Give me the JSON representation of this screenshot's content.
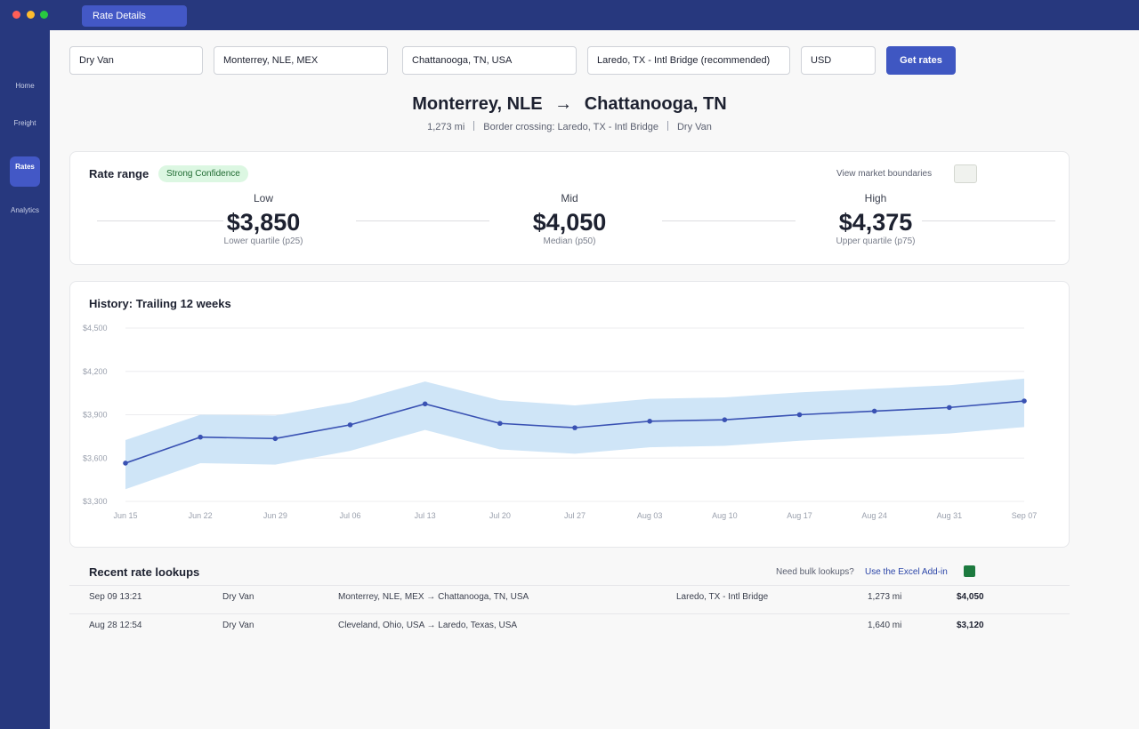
{
  "window": {
    "tab_label": "Rate Details"
  },
  "sidebar": {
    "items": [
      {
        "label": "Home"
      },
      {
        "label": "Freight"
      },
      {
        "label": "Rates"
      },
      {
        "label": "Analytics"
      }
    ]
  },
  "search": {
    "equipment": "Dry Van",
    "origin": "Monterrey, NLE, MEX",
    "destination": "Chattanooga, TN, USA",
    "border": "Laredo, TX - Intl Bridge (recommended)",
    "currency": "USD",
    "submit_label": "Get rates"
  },
  "route": {
    "origin": "Monterrey, NLE",
    "arrow": "→",
    "destination": "Chattanooga, TN",
    "distance": "1,273 mi",
    "border": "Border crossing: Laredo, TX - Intl Bridge",
    "equipment": "Dry Van"
  },
  "rate_range": {
    "title": "Rate range",
    "confidence": "Strong Confidence",
    "boundaries_label": "View market boundaries",
    "low": {
      "label": "Low",
      "value": "$3,850",
      "sub": "Lower quartile (p25)"
    },
    "mid": {
      "label": "Mid",
      "value": "$4,050",
      "sub": "Median (p50)"
    },
    "high": {
      "label": "High",
      "value": "$4,375",
      "sub": "Upper quartile (p75)"
    }
  },
  "history": {
    "title": "History: Trailing 12 weeks"
  },
  "chart_data": {
    "type": "line",
    "title": "History: Trailing 12 weeks",
    "x": [
      "Jun 15",
      "Jun 22",
      "Jun 29",
      "Jul 06",
      "Jul 13",
      "Jul 20",
      "Jul 27",
      "Aug 03",
      "Aug 10",
      "Aug 17",
      "Aug 24",
      "Aug 31",
      "Sep 07"
    ],
    "ylim": [
      3300,
      4500
    ],
    "yticks": [
      3300,
      3600,
      3900,
      4200,
      4500
    ],
    "ytick_labels": [
      "$3,300",
      "$3,600",
      "$3,900",
      "$4,200",
      "$4,500"
    ],
    "grid": true,
    "series": [
      {
        "values": [
          3565,
          3745,
          3735,
          3830,
          3975,
          3840,
          3810,
          3855,
          3865,
          3900,
          3925,
          3950,
          3995
        ]
      }
    ],
    "band": {
      "lower": [
        3385,
        3565,
        3555,
        3650,
        3795,
        3660,
        3630,
        3675,
        3685,
        3720,
        3745,
        3770,
        3815
      ],
      "upper": [
        3725,
        3900,
        3895,
        3985,
        4130,
        4000,
        3965,
        4010,
        4020,
        4055,
        4080,
        4105,
        4150
      ]
    },
    "colors": {
      "line": "#3a52b3",
      "band": "#cfe5f7"
    }
  },
  "recent": {
    "title": "Recent rate lookups",
    "bulk_question": "Need bulk lookups?",
    "bulk_link": "Use the Excel Add-in",
    "rows": [
      {
        "date": "Sep 09 13:21",
        "equipment": "Dry Van",
        "lane": "Monterrey, NLE, MEX → Chattanooga, TN, USA",
        "border": "Laredo, TX - Intl Bridge",
        "distance": "1,273 mi",
        "rate": "$4,050"
      },
      {
        "date": "Aug 28 12:54",
        "equipment": "Dry Van",
        "lane": "Cleveland, Ohio, USA → Laredo, Texas, USA",
        "border": "",
        "distance": "1,640 mi",
        "rate": "$3,120"
      }
    ]
  }
}
